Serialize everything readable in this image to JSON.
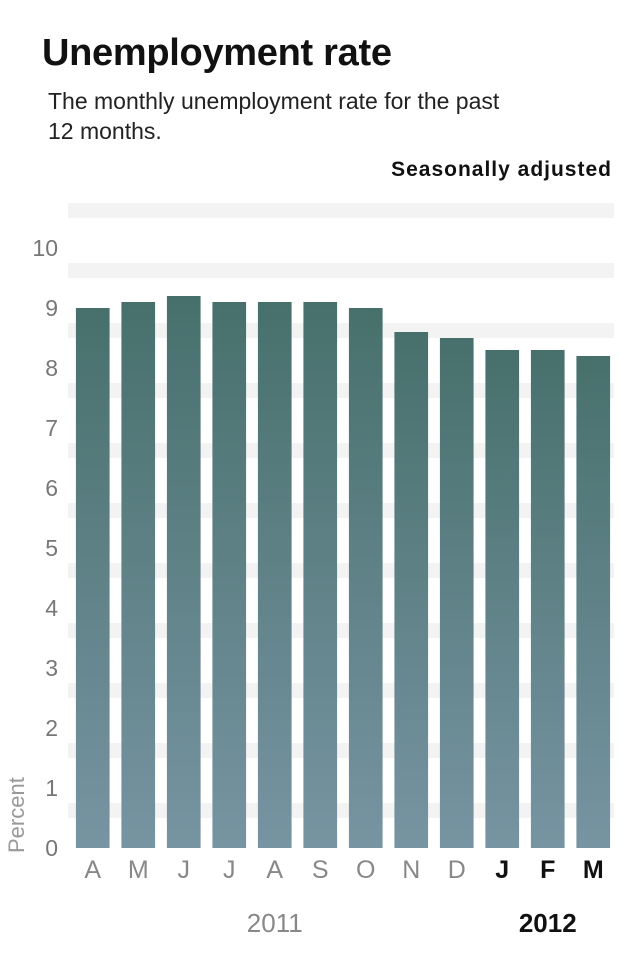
{
  "chart_data": {
    "type": "bar",
    "title": "Unemployment rate",
    "subtitle": "The monthly unemployment rate for the past 12 months.",
    "note": "Seasonally adjusted",
    "ylabel": "Percent",
    "xlabel": "",
    "ylim": [
      0,
      10
    ],
    "yticks": [
      0,
      1,
      2,
      3,
      4,
      5,
      6,
      7,
      8,
      9,
      10
    ],
    "grid": true,
    "categories": [
      "A",
      "M",
      "J",
      "J",
      "A",
      "S",
      "O",
      "N",
      "D",
      "J",
      "F",
      "M"
    ],
    "values": [
      9.0,
      9.1,
      9.2,
      9.1,
      9.1,
      9.1,
      9.0,
      8.6,
      8.5,
      8.3,
      8.3,
      8.2
    ],
    "highlighted_categories": [
      9,
      10,
      11
    ],
    "years": [
      {
        "label": "2011",
        "from": 0,
        "to": 8,
        "highlighted": false
      },
      {
        "label": "2012",
        "from": 9,
        "to": 11,
        "highlighted": true
      }
    ],
    "colors": {
      "bar_top": "#47706C",
      "bar_bottom": "#7794A2",
      "grid_band": "#F3F3F3"
    }
  }
}
